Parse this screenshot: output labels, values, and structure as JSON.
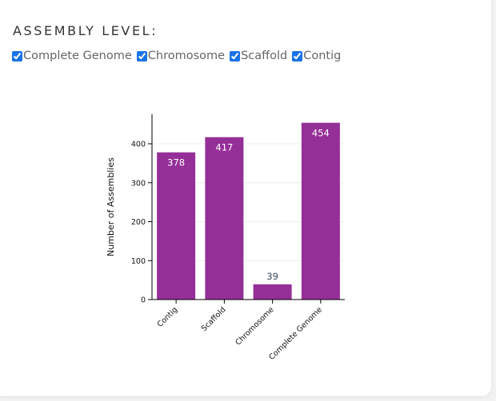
{
  "section": {
    "title": "ASSEMBLY LEVEL:"
  },
  "filters": [
    {
      "label": "Complete Genome",
      "checked": true
    },
    {
      "label": "Chromosome",
      "checked": true
    },
    {
      "label": "Scaffold",
      "checked": true
    },
    {
      "label": "Contig",
      "checked": true
    }
  ],
  "colors": {
    "bar": "#952f98",
    "label_inside": "#ffffff",
    "label_outside": "#3a4a5e",
    "checkbox": "#1a73e8"
  },
  "chart_data": {
    "type": "bar",
    "categories": [
      "Contig",
      "Scaffold",
      "Chromosome",
      "Complete Genome"
    ],
    "values": [
      378,
      417,
      39,
      454
    ],
    "value_labels": [
      "378",
      "417",
      "39",
      "454"
    ],
    "ylabel": "Number of Assemblies",
    "ylim": [
      0,
      480
    ],
    "yticks": [
      0,
      100,
      200,
      300,
      400
    ],
    "ytick_labels": [
      "0",
      "100",
      "200",
      "300",
      "400"
    ],
    "grid": true
  }
}
